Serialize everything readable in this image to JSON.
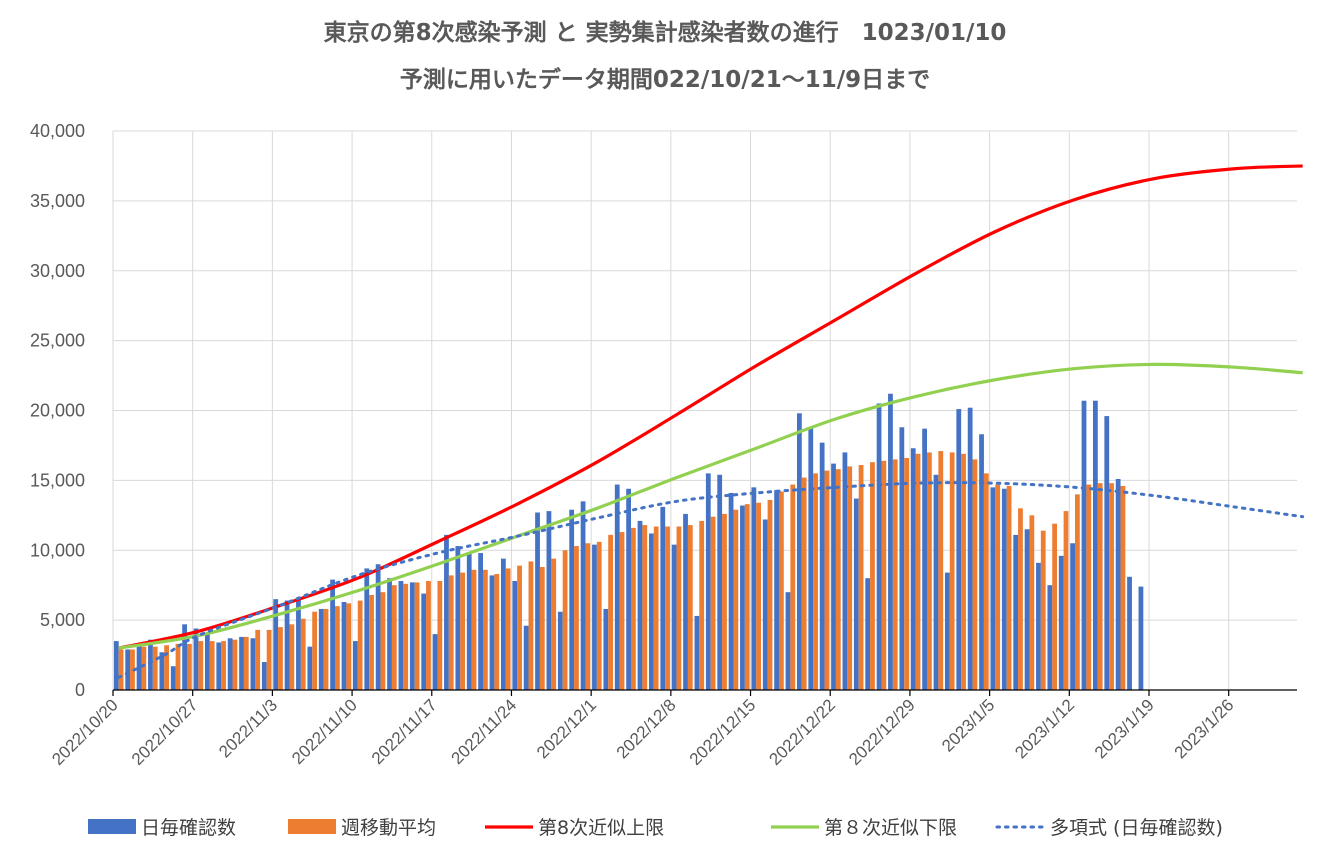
{
  "chart_data": {
    "type": "bar",
    "title": "東京の第8次感染予測 と 実勢集計感染者数の進行　1023/01/10",
    "subtitle": "予測に用いたデータ期間022/10/21～11/9日まで",
    "xlabel": "",
    "ylabel": "",
    "ylim": [
      0,
      40000
    ],
    "yticks": [
      0,
      5000,
      10000,
      15000,
      20000,
      25000,
      30000,
      35000,
      40000
    ],
    "ytick_labels": [
      "0",
      "5,000",
      "10,000",
      "15,000",
      "20,000",
      "25,000",
      "30,000",
      "35,000",
      "40,000"
    ],
    "x_start": "2022/10/20",
    "x_end": "2023/2/1",
    "xtick_labels": [
      "2022/10/20",
      "2022/10/27",
      "2022/11/3",
      "2022/11/10",
      "2022/11/17",
      "2022/11/24",
      "2022/12/1",
      "2022/12/8",
      "2022/12/15",
      "2022/12/22",
      "2022/12/29",
      "2023/1/5",
      "2023/1/12",
      "2023/1/19",
      "2023/1/26"
    ],
    "grid": true,
    "legend_position": "bottom",
    "series": [
      {
        "name": "日毎確認数",
        "type": "bar",
        "color": "#4472c4",
        "values": [
          3500,
          2900,
          3300,
          3600,
          2700,
          1700,
          4700,
          4400,
          4000,
          3400,
          3700,
          3800,
          3700,
          2000,
          6500,
          6400,
          6600,
          3100,
          5800,
          7900,
          6300,
          3500,
          8700,
          9000,
          8000,
          7800,
          7700,
          6900,
          4000,
          11100,
          10300,
          9800,
          9800,
          8200,
          9400,
          7800,
          4600,
          12700,
          12800,
          5600,
          12900,
          13500,
          10400,
          5800,
          14700,
          14400,
          12100,
          11200,
          13100,
          10400,
          12600,
          5300,
          15500,
          15400,
          14100,
          13200,
          14500,
          12200,
          14300,
          7000,
          19800,
          18800,
          17700,
          16200,
          17000,
          13700,
          8000,
          20500,
          21200,
          18800,
          17300,
          18700,
          15400,
          8400,
          20100,
          20200,
          18300,
          14500,
          14400,
          11100,
          11500,
          9100,
          7500,
          9600,
          10500,
          20700,
          20700,
          19600,
          15100,
          8100,
          7400
        ]
      },
      {
        "name": "週移動平均",
        "type": "bar",
        "color": "#ed7d31",
        "values": [
          2900,
          2900,
          3100,
          3100,
          3200,
          3300,
          3300,
          3500,
          3500,
          3500,
          3600,
          3800,
          4300,
          4300,
          4500,
          4700,
          5100,
          5600,
          5800,
          6000,
          6200,
          6400,
          6800,
          7000,
          7500,
          7600,
          7700,
          7800,
          7800,
          8200,
          8400,
          8600,
          8600,
          8300,
          8700,
          8900,
          9200,
          8800,
          9400,
          10000,
          10300,
          10500,
          10600,
          11100,
          11300,
          11600,
          11800,
          11700,
          11700,
          11700,
          11800,
          12100,
          12400,
          12600,
          12900,
          13300,
          13400,
          13600,
          14200,
          14700,
          15200,
          15500,
          15700,
          15800,
          16000,
          16100,
          16300,
          16400,
          16500,
          16600,
          16900,
          17000,
          17100,
          17000,
          16900,
          16500,
          15500,
          14700,
          14600,
          13000,
          12500,
          11400,
          11900,
          12800,
          14000,
          14700,
          14800,
          14800,
          14600
        ]
      },
      {
        "name": "第8次近似上限",
        "type": "line",
        "color": "#ff0000",
        "dates": [
          "2022/10/20",
          "2022/10/27",
          "2022/11/3",
          "2022/11/10",
          "2022/11/17",
          "2022/11/24",
          "2022/12/1",
          "2022/12/8",
          "2022/12/15",
          "2022/12/22",
          "2022/12/29",
          "2023/1/5",
          "2023/1/12",
          "2023/1/19",
          "2023/1/26",
          "2023/2/1"
        ],
        "values": [
          3000,
          4200,
          6000,
          8000,
          10600,
          13300,
          16300,
          19700,
          23200,
          26500,
          29800,
          32800,
          35100,
          36600,
          37300,
          37500
        ]
      },
      {
        "name": "第８次近似下限",
        "type": "line",
        "color": "#92d050",
        "dates": [
          "2022/10/20",
          "2022/10/27",
          "2022/11/3",
          "2022/11/10",
          "2022/11/17",
          "2022/11/24",
          "2022/12/1",
          "2022/12/8",
          "2022/12/15",
          "2022/12/22",
          "2022/12/29",
          "2023/1/5",
          "2023/1/12",
          "2023/1/19",
          "2023/1/26",
          "2023/2/1"
        ],
        "values": [
          3000,
          3900,
          5400,
          7100,
          9000,
          11000,
          13000,
          15200,
          17300,
          19400,
          21000,
          22200,
          23000,
          23300,
          23100,
          22700
        ]
      },
      {
        "name": "多項式 (日毎確認数)",
        "type": "line",
        "style": "dotted",
        "color": "#4472c4",
        "dates": [
          "2022/10/20",
          "2022/10/24",
          "2022/10/27",
          "2022/11/3",
          "2022/11/10",
          "2022/11/17",
          "2022/11/24",
          "2022/12/1",
          "2022/12/8",
          "2022/12/15",
          "2022/12/22",
          "2022/12/29",
          "2023/1/5",
          "2023/1/12",
          "2023/1/19",
          "2023/1/26",
          "2023/2/1"
        ],
        "values": [
          900,
          2500,
          3900,
          6000,
          8200,
          9800,
          11000,
          12300,
          13500,
          14100,
          14500,
          14800,
          14800,
          14500,
          13900,
          13100,
          12400
        ]
      }
    ]
  }
}
